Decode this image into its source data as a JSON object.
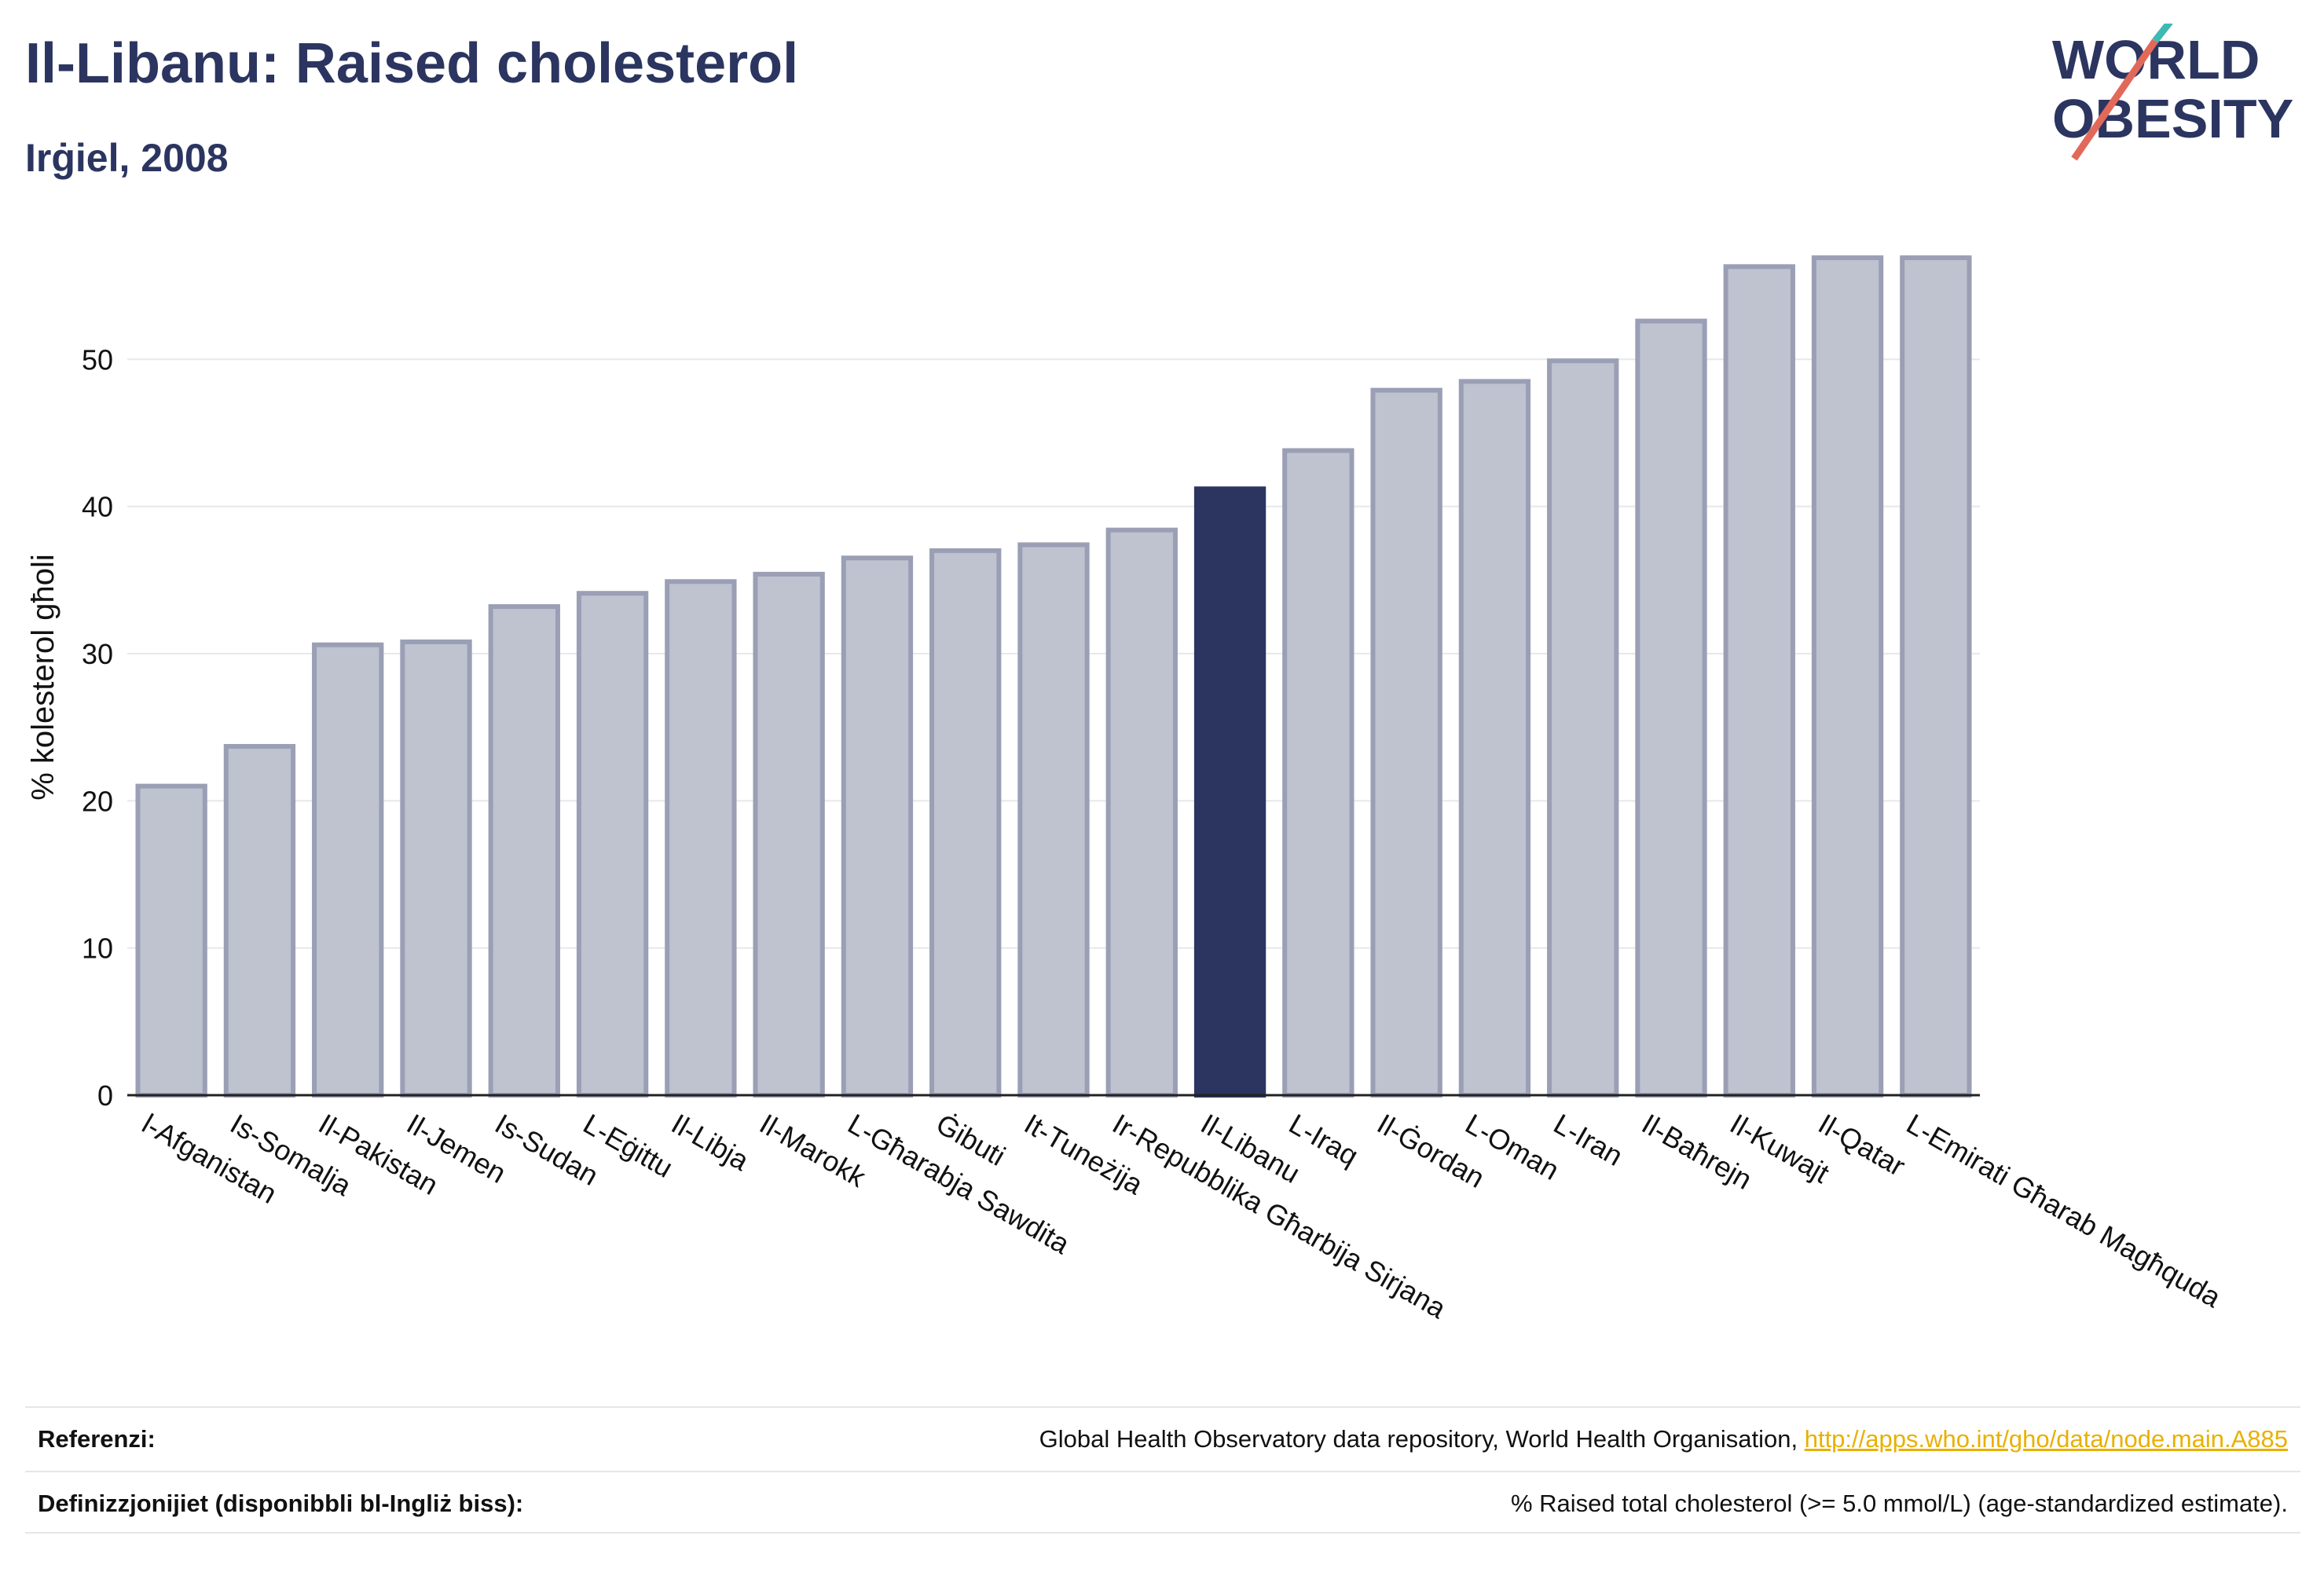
{
  "header": {
    "title": "Il-Libanu: Raised cholesterol",
    "subtitle": "Irġiel, 2008"
  },
  "logo": {
    "line1": "WORLD",
    "line2": "OBESITY"
  },
  "chart_data": {
    "type": "bar",
    "title": "Il-Libanu: Raised cholesterol",
    "subtitle": "Irġiel, 2008",
    "xlabel": "",
    "ylabel": "% kolesterol għoli",
    "ylim": [
      0,
      60
    ],
    "yticks": [
      0,
      10,
      20,
      30,
      40,
      50
    ],
    "grid": true,
    "highlight": "Il-Libanu",
    "colors": {
      "bar": "#bfc2cf",
      "bar_border": "#9a9fb5",
      "highlight": "#2b3560"
    },
    "categories": [
      "l-Afganistan",
      "Is-Somalja",
      "Il-Pakistan",
      "Il-Jemen",
      "Is-Sudan",
      "L-Eġittu",
      "Il-Libja",
      "Il-Marokk",
      "L-Għarabja Sawdita",
      "Ġibuti",
      "It-Tuneżija",
      "Ir-Repubblika Għarbija Sirjana",
      "Il-Libanu",
      "L-Iraq",
      "Il-Ġordan",
      "L-Oman",
      "L-Iran",
      "Il-Baħrejn",
      "Il-Kuwajt",
      "Il-Qatar",
      "L-Emirati Għarab Magħquda"
    ],
    "values": [
      21.0,
      23.7,
      30.6,
      30.8,
      33.2,
      34.1,
      34.9,
      35.4,
      36.5,
      37.0,
      37.4,
      38.4,
      41.2,
      43.8,
      47.9,
      48.5,
      49.9,
      52.6,
      56.3,
      56.9,
      56.9
    ]
  },
  "footer": {
    "references_label": "Referenzi:",
    "references_text": "Global Health Observatory data repository, World Health Organisation, ",
    "references_link": "http://apps.who.int/gho/data/node.main.A885",
    "definitions_label": "Definizzjonijiet (disponibbli bl-Ingliż biss):",
    "definitions_text": "% Raised total cholesterol (>= 5.0 mmol/L) (age-standardized estimate)."
  }
}
